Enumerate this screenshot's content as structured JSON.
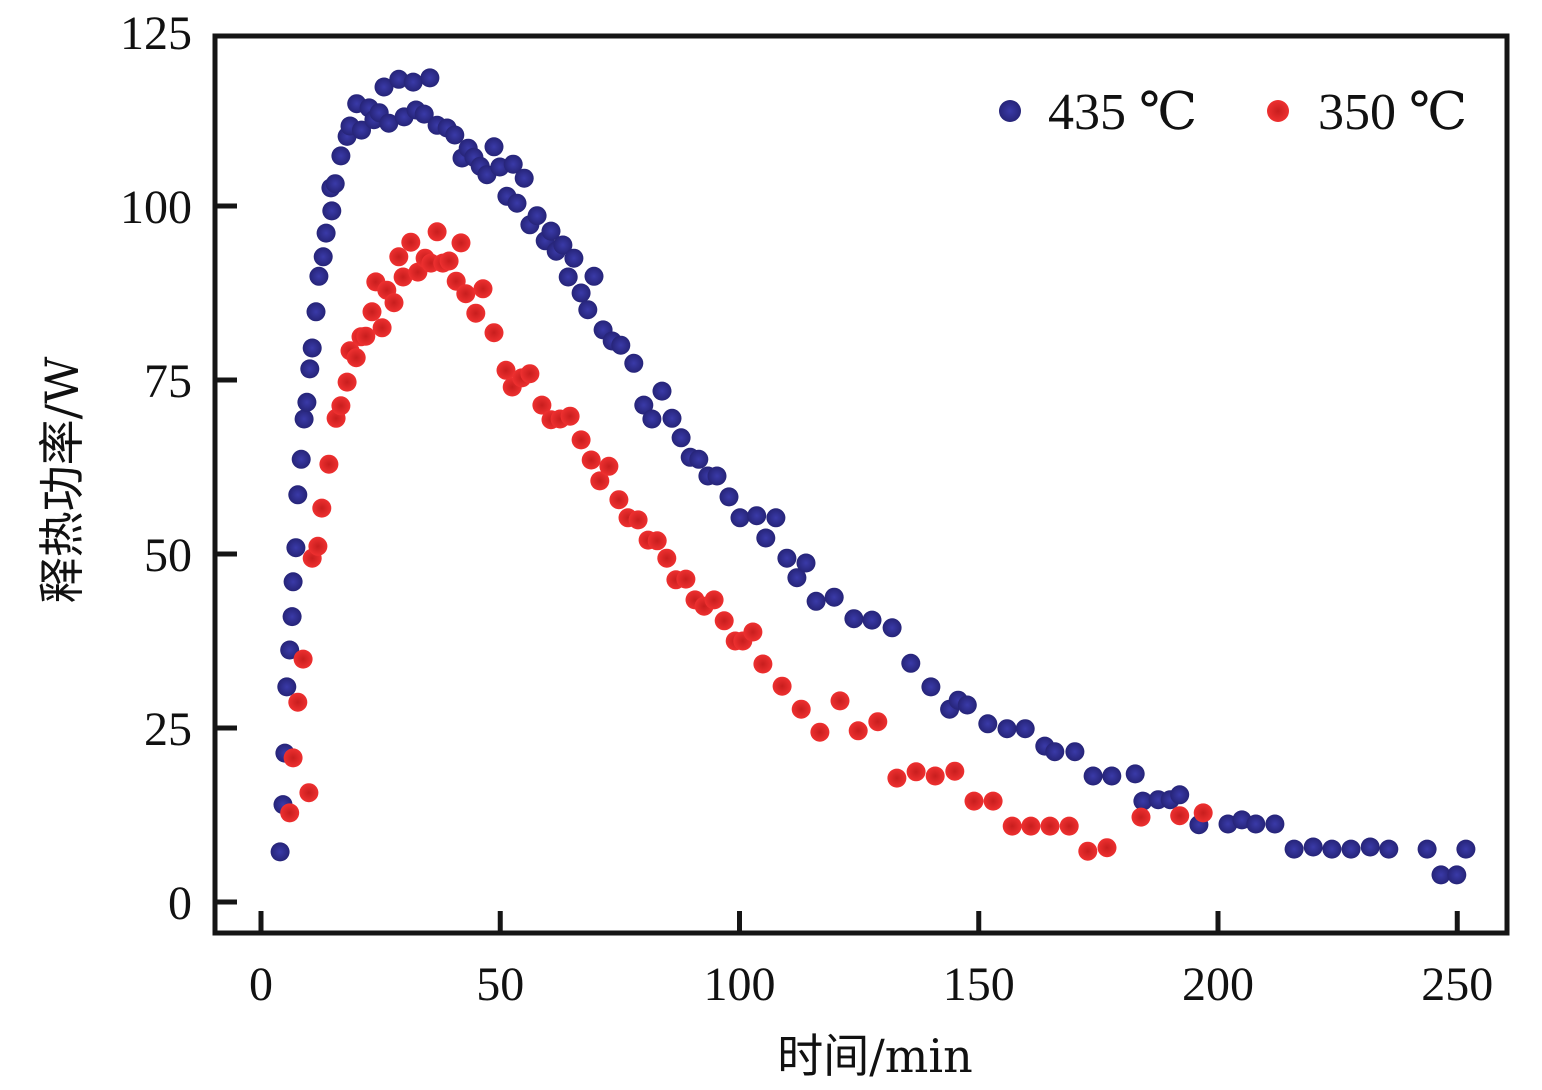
{
  "chart_data": {
    "type": "scatter",
    "title": "",
    "xlabel": "时间/min",
    "ylabel": "释热功率/W",
    "xlim": [
      -10,
      260
    ],
    "ylim": [
      -5,
      125
    ],
    "xticks": [
      0,
      50,
      100,
      150,
      200,
      250
    ],
    "yticks": [
      0,
      25,
      50,
      75,
      100,
      125
    ],
    "xtick_labels": [
      "0",
      "50",
      "100",
      "150",
      "200",
      "250"
    ],
    "ytick_labels": [
      "0",
      "25",
      "50",
      "75",
      "100",
      "125"
    ],
    "grid": false,
    "legend_position": "top-right",
    "series": [
      {
        "name": "435 ℃",
        "color": "#2b2a8c",
        "points": [
          [
            4.0,
            7.2
          ],
          [
            4.6,
            14.0
          ],
          [
            5.0,
            21.4
          ],
          [
            5.4,
            30.9
          ],
          [
            6.0,
            36.2
          ],
          [
            6.5,
            41.0
          ],
          [
            6.7,
            46.0
          ],
          [
            7.3,
            50.9
          ],
          [
            7.7,
            58.5
          ],
          [
            8.4,
            63.6
          ],
          [
            9.0,
            69.4
          ],
          [
            9.6,
            71.8
          ],
          [
            10.2,
            76.6
          ],
          [
            10.7,
            79.6
          ],
          [
            11.5,
            84.8
          ],
          [
            12.1,
            89.9
          ],
          [
            13.0,
            92.7
          ],
          [
            13.6,
            96.1
          ],
          [
            14.8,
            99.3
          ],
          [
            14.6,
            102.6
          ],
          [
            15.5,
            103.2
          ],
          [
            16.7,
            107.2
          ],
          [
            18.0,
            110.0
          ],
          [
            18.6,
            111.5
          ],
          [
            20.0,
            114.7
          ],
          [
            21.0,
            110.9
          ],
          [
            22.6,
            114.1
          ],
          [
            23.6,
            112.4
          ],
          [
            24.7,
            113.4
          ],
          [
            25.7,
            117.1
          ],
          [
            26.7,
            111.9
          ],
          [
            28.8,
            118.2
          ],
          [
            29.9,
            112.8
          ],
          [
            31.8,
            117.8
          ],
          [
            32.4,
            113.8
          ],
          [
            34.1,
            113.2
          ],
          [
            35.3,
            118.4
          ],
          [
            36.8,
            111.6
          ],
          [
            38.9,
            111.2
          ],
          [
            40.5,
            110.2
          ],
          [
            42.0,
            106.9
          ],
          [
            43.3,
            108.3
          ],
          [
            44.5,
            107.0
          ],
          [
            45.8,
            105.7
          ],
          [
            47.2,
            104.5
          ],
          [
            48.7,
            108.5
          ],
          [
            49.9,
            105.6
          ],
          [
            51.4,
            101.4
          ],
          [
            52.7,
            106.0
          ],
          [
            53.5,
            100.4
          ],
          [
            55.0,
            104.0
          ],
          [
            56.2,
            97.3
          ],
          [
            57.7,
            98.6
          ],
          [
            59.4,
            95.0
          ],
          [
            60.6,
            96.4
          ],
          [
            61.7,
            93.5
          ],
          [
            63.1,
            94.4
          ],
          [
            64.2,
            89.8
          ],
          [
            65.4,
            92.5
          ],
          [
            66.9,
            87.5
          ],
          [
            68.3,
            85.1
          ],
          [
            69.6,
            89.9
          ],
          [
            71.5,
            82.2
          ],
          [
            73.4,
            80.6
          ],
          [
            75.2,
            80.0
          ],
          [
            77.9,
            77.4
          ],
          [
            80.0,
            71.4
          ],
          [
            81.7,
            69.4
          ],
          [
            83.8,
            73.4
          ],
          [
            85.9,
            69.5
          ],
          [
            87.8,
            66.7
          ],
          [
            89.7,
            63.9
          ],
          [
            91.5,
            63.6
          ],
          [
            93.4,
            61.2
          ],
          [
            95.3,
            61.2
          ],
          [
            97.8,
            58.2
          ],
          [
            100.1,
            55.2
          ],
          [
            103.6,
            55.5
          ],
          [
            105.5,
            52.3
          ],
          [
            107.6,
            55.2
          ],
          [
            109.9,
            49.4
          ],
          [
            112.0,
            46.6
          ],
          [
            113.9,
            48.7
          ],
          [
            116.0,
            43.2
          ],
          [
            119.8,
            43.8
          ],
          [
            123.9,
            40.7
          ],
          [
            127.7,
            40.5
          ],
          [
            131.9,
            39.4
          ],
          [
            135.8,
            34.3
          ],
          [
            140.0,
            30.9
          ],
          [
            143.9,
            27.7
          ],
          [
            145.7,
            29.0
          ],
          [
            147.6,
            28.3
          ],
          [
            151.9,
            25.6
          ],
          [
            155.9,
            24.9
          ],
          [
            159.7,
            24.9
          ],
          [
            163.8,
            22.4
          ],
          [
            165.9,
            21.6
          ],
          [
            170.1,
            21.6
          ],
          [
            173.9,
            18.1
          ],
          [
            177.8,
            18.1
          ],
          [
            182.7,
            18.4
          ],
          [
            184.3,
            14.5
          ],
          [
            187.5,
            14.7
          ],
          [
            190.0,
            14.7
          ],
          [
            192.0,
            15.4
          ],
          [
            196.0,
            11.1
          ],
          [
            202.1,
            11.2
          ],
          [
            205.0,
            11.8
          ],
          [
            207.9,
            11.2
          ],
          [
            211.9,
            11.2
          ],
          [
            215.9,
            7.6
          ],
          [
            219.9,
            7.9
          ],
          [
            223.8,
            7.6
          ],
          [
            227.8,
            7.6
          ],
          [
            231.8,
            7.9
          ],
          [
            235.7,
            7.6
          ],
          [
            243.7,
            7.6
          ],
          [
            246.6,
            3.9
          ],
          [
            249.9,
            3.9
          ],
          [
            251.8,
            7.6
          ]
        ]
      },
      {
        "name": "350 ℃",
        "color": "#e02a2a",
        "points": [
          [
            6.0,
            12.8
          ],
          [
            6.7,
            20.7
          ],
          [
            7.7,
            28.7
          ],
          [
            8.8,
            34.9
          ],
          [
            10.0,
            15.7
          ],
          [
            10.7,
            49.4
          ],
          [
            11.9,
            51.1
          ],
          [
            12.7,
            56.6
          ],
          [
            14.2,
            62.9
          ],
          [
            15.7,
            69.5
          ],
          [
            16.7,
            71.3
          ],
          [
            18.0,
            74.7
          ],
          [
            18.6,
            79.2
          ],
          [
            19.9,
            78.2
          ],
          [
            20.9,
            81.2
          ],
          [
            21.9,
            81.3
          ],
          [
            23.2,
            84.8
          ],
          [
            24.0,
            89.1
          ],
          [
            25.3,
            82.5
          ],
          [
            26.3,
            87.9
          ],
          [
            27.8,
            86.1
          ],
          [
            28.8,
            92.7
          ],
          [
            29.7,
            89.8
          ],
          [
            31.3,
            94.8
          ],
          [
            32.8,
            90.5
          ],
          [
            34.3,
            92.5
          ],
          [
            35.5,
            91.8
          ],
          [
            36.8,
            96.3
          ],
          [
            38.0,
            91.8
          ],
          [
            39.3,
            92.1
          ],
          [
            40.8,
            89.2
          ],
          [
            41.8,
            94.7
          ],
          [
            42.8,
            87.4
          ],
          [
            44.9,
            84.6
          ],
          [
            46.4,
            88.1
          ],
          [
            48.7,
            81.8
          ],
          [
            51.2,
            76.4
          ],
          [
            52.5,
            74.0
          ],
          [
            54.5,
            75.3
          ],
          [
            56.2,
            75.9
          ],
          [
            58.7,
            71.4
          ],
          [
            60.6,
            69.3
          ],
          [
            62.5,
            69.4
          ],
          [
            64.6,
            69.8
          ],
          [
            66.9,
            66.4
          ],
          [
            69.0,
            63.5
          ],
          [
            70.8,
            60.5
          ],
          [
            72.7,
            62.6
          ],
          [
            74.8,
            57.8
          ],
          [
            76.7,
            55.2
          ],
          [
            78.8,
            54.9
          ],
          [
            80.9,
            52.0
          ],
          [
            82.8,
            51.9
          ],
          [
            84.8,
            49.4
          ],
          [
            86.7,
            46.3
          ],
          [
            88.8,
            46.4
          ],
          [
            90.7,
            43.4
          ],
          [
            92.6,
            42.5
          ],
          [
            94.7,
            43.4
          ],
          [
            96.8,
            40.4
          ],
          [
            99.1,
            37.5
          ],
          [
            100.7,
            37.5
          ],
          [
            102.8,
            38.8
          ],
          [
            104.9,
            34.2
          ],
          [
            108.9,
            31.0
          ],
          [
            112.9,
            27.7
          ],
          [
            116.8,
            24.4
          ],
          [
            121.0,
            28.9
          ],
          [
            124.8,
            24.6
          ],
          [
            128.9,
            25.9
          ],
          [
            132.9,
            17.8
          ],
          [
            136.9,
            18.7
          ],
          [
            140.9,
            18.1
          ],
          [
            145.0,
            18.8
          ],
          [
            149.0,
            14.5
          ],
          [
            153.0,
            14.5
          ],
          [
            157.0,
            10.9
          ],
          [
            160.9,
            10.9
          ],
          [
            164.9,
            10.9
          ],
          [
            168.9,
            10.9
          ],
          [
            172.8,
            7.3
          ],
          [
            176.8,
            7.8
          ],
          [
            183.9,
            12.2
          ],
          [
            192.0,
            12.4
          ],
          [
            196.9,
            12.8
          ]
        ]
      }
    ]
  }
}
